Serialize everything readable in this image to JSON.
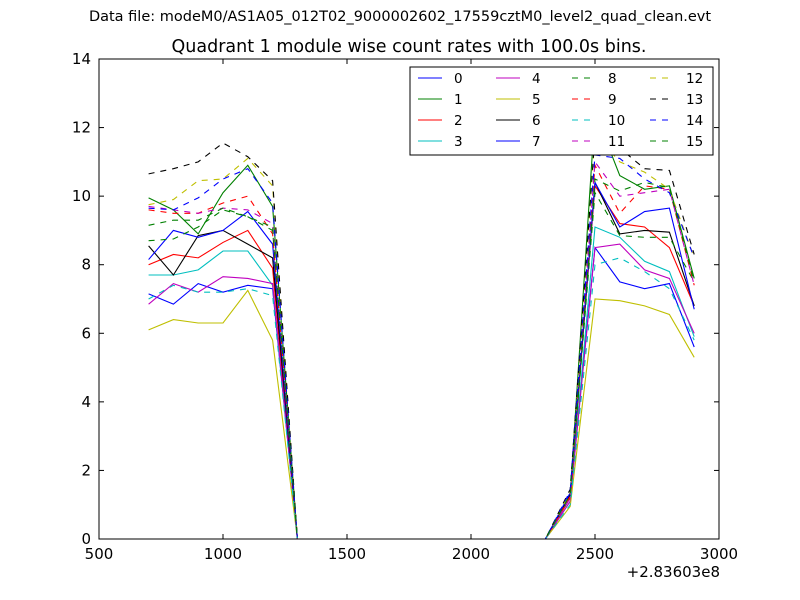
{
  "header": {
    "suptitle": "Data file: modeM0/AS1A05_012T02_9000002602_17559cztM0_level2_quad_clean.evt"
  },
  "chart_data": {
    "type": "line",
    "title": "Quadrant 1 module wise count rates with 100.0s bins.",
    "xlabel": "",
    "ylabel": "",
    "x_offset_label": "+2.83603e8",
    "xlim": [
      500,
      3000
    ],
    "ylim": [
      0,
      14
    ],
    "xticks": [
      "500",
      "1000",
      "1500",
      "2000",
      "2500",
      "3000"
    ],
    "yticks": [
      "0",
      "2",
      "4",
      "6",
      "8",
      "10",
      "12",
      "14"
    ],
    "grid": false,
    "legend": {
      "location": "upper-right",
      "columns": 4
    },
    "x": [
      700,
      800,
      900,
      1000,
      1100,
      1200,
      1300,
      1400,
      1500,
      1600,
      1700,
      1800,
      1900,
      2000,
      2100,
      2200,
      2300,
      2400,
      2500,
      2600,
      2700,
      2800,
      2900
    ],
    "series": [
      {
        "name": "0",
        "color": "#0000ff",
        "dash": "solid",
        "values": [
          7.15,
          6.85,
          7.45,
          7.2,
          7.4,
          7.3,
          0,
          0,
          0,
          0,
          0,
          0,
          0,
          0,
          0,
          0,
          0,
          1.3,
          8.5,
          7.5,
          7.3,
          7.45,
          5.6
        ]
      },
      {
        "name": "1",
        "color": "#008000",
        "dash": "solid",
        "values": [
          9.95,
          9.6,
          8.9,
          10.1,
          10.9,
          9.7,
          0,
          0,
          0,
          0,
          0,
          0,
          0,
          0,
          0,
          0,
          0,
          1.3,
          12.45,
          10.6,
          10.2,
          10.3,
          7.6
        ]
      },
      {
        "name": "2",
        "color": "#ff0000",
        "dash": "solid",
        "values": [
          8.0,
          8.3,
          8.2,
          8.65,
          9.0,
          7.9,
          0,
          0,
          0,
          0,
          0,
          0,
          0,
          0,
          0,
          0,
          0,
          1.2,
          10.3,
          9.2,
          9.1,
          8.5,
          6.8
        ]
      },
      {
        "name": "3",
        "color": "#00bfbf",
        "dash": "solid",
        "values": [
          7.7,
          7.7,
          7.85,
          8.4,
          8.4,
          7.4,
          0,
          0,
          0,
          0,
          0,
          0,
          0,
          0,
          0,
          0,
          0,
          1.1,
          9.1,
          8.8,
          8.1,
          7.8,
          5.9
        ]
      },
      {
        "name": "4",
        "color": "#bf00bf",
        "dash": "solid",
        "values": [
          6.85,
          7.45,
          7.2,
          7.65,
          7.6,
          7.45,
          0,
          0,
          0,
          0,
          0,
          0,
          0,
          0,
          0,
          0,
          0,
          1.1,
          8.5,
          8.6,
          7.85,
          7.6,
          6.0
        ]
      },
      {
        "name": "5",
        "color": "#bfbf00",
        "dash": "solid",
        "values": [
          6.1,
          6.4,
          6.3,
          6.3,
          7.25,
          5.8,
          0,
          0,
          0,
          0,
          0,
          0,
          0,
          0,
          0,
          0,
          0,
          0.95,
          7.0,
          6.95,
          6.8,
          6.55,
          5.3
        ]
      },
      {
        "name": "6",
        "color": "#000000",
        "dash": "solid",
        "values": [
          8.55,
          7.7,
          8.85,
          9.0,
          8.6,
          8.2,
          0,
          0,
          0,
          0,
          0,
          0,
          0,
          0,
          0,
          0,
          0,
          1.3,
          10.4,
          8.9,
          9.0,
          8.95,
          6.8
        ]
      },
      {
        "name": "7",
        "color": "#0000ff",
        "dash": "solid",
        "values": [
          8.15,
          9.0,
          8.8,
          9.0,
          9.55,
          8.6,
          0,
          0,
          0,
          0,
          0,
          0,
          0,
          0,
          0,
          0,
          0,
          1.35,
          10.4,
          9.1,
          9.55,
          9.65,
          6.7
        ]
      },
      {
        "name": "8",
        "color": "#008000",
        "dash": "dashed",
        "values": [
          8.7,
          8.75,
          9.1,
          9.6,
          9.4,
          9.0,
          0,
          0,
          0,
          0,
          0,
          0,
          0,
          0,
          0,
          0,
          0,
          1.2,
          10.1,
          8.85,
          8.8,
          8.8,
          7.5
        ]
      },
      {
        "name": "9",
        "color": "#ff0000",
        "dash": "dashed",
        "values": [
          9.6,
          9.5,
          9.5,
          9.8,
          10.0,
          8.9,
          0,
          0,
          0,
          0,
          0,
          0,
          0,
          0,
          0,
          0,
          0,
          1.25,
          10.9,
          9.5,
          10.3,
          10.2,
          7.4
        ]
      },
      {
        "name": "10",
        "color": "#00bfbf",
        "dash": "dashed",
        "values": [
          7.0,
          7.4,
          7.2,
          7.2,
          7.3,
          7.1,
          0,
          0,
          0,
          0,
          0,
          0,
          0,
          0,
          0,
          0,
          0,
          1.0,
          8.0,
          8.2,
          7.8,
          7.3,
          5.8
        ]
      },
      {
        "name": "11",
        "color": "#bf00bf",
        "dash": "dashed",
        "values": [
          9.7,
          9.6,
          9.5,
          9.65,
          9.6,
          9.2,
          0,
          0,
          0,
          0,
          0,
          0,
          0,
          0,
          0,
          0,
          0,
          1.2,
          11.0,
          10.0,
          10.1,
          10.2,
          7.4
        ]
      },
      {
        "name": "12",
        "color": "#bfbf00",
        "dash": "dashed",
        "values": [
          9.75,
          9.9,
          10.45,
          10.5,
          11.1,
          10.3,
          0,
          0,
          0,
          0,
          0,
          0,
          0,
          0,
          0,
          0,
          0,
          1.35,
          11.8,
          11.0,
          10.7,
          10.2,
          8.2
        ]
      },
      {
        "name": "13",
        "color": "#000000",
        "dash": "dashed",
        "values": [
          10.65,
          10.8,
          11.0,
          11.55,
          11.15,
          10.45,
          0,
          0,
          0,
          0,
          0,
          0,
          0,
          0,
          0,
          0,
          0,
          1.45,
          11.8,
          11.4,
          10.8,
          10.75,
          8.3
        ]
      },
      {
        "name": "14",
        "color": "#0000ff",
        "dash": "dashed",
        "values": [
          9.65,
          9.6,
          9.95,
          10.5,
          10.8,
          9.8,
          0,
          0,
          0,
          0,
          0,
          0,
          0,
          0,
          0,
          0,
          0,
          1.4,
          11.2,
          11.1,
          10.5,
          10.1,
          8.2
        ]
      },
      {
        "name": "15",
        "color": "#008000",
        "dash": "dashed",
        "values": [
          9.15,
          9.3,
          9.3,
          9.65,
          9.4,
          9.1,
          0,
          0,
          0,
          0,
          0,
          0,
          0,
          0,
          0,
          0,
          0,
          1.3,
          10.5,
          10.15,
          10.4,
          10.25,
          7.5
        ]
      }
    ]
  }
}
